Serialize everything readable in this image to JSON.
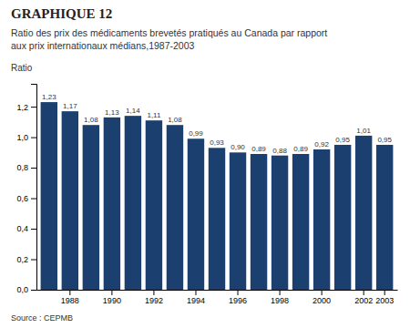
{
  "chart_data": {
    "type": "bar",
    "title": "GRAPHIQUE 12",
    "subtitle": [
      "Ratio des prix des médicaments brevetés pratiqués au Canada par rapport",
      "aux prix internationaux médians,1987-2003"
    ],
    "y_label": "Ratio",
    "source": "Source : CEPMB",
    "categories": [
      null,
      "1988",
      null,
      "1990",
      null,
      "1992",
      null,
      "1994",
      null,
      "1996",
      null,
      "1998",
      null,
      "2000",
      null,
      "2002",
      "2003"
    ],
    "values": [
      1.23,
      1.17,
      1.08,
      1.13,
      1.14,
      1.11,
      1.08,
      0.99,
      0.93,
      0.9,
      0.89,
      0.88,
      0.89,
      0.92,
      0.95,
      1.01,
      0.95
    ],
    "value_labels": [
      "1,23",
      "1,17",
      "1,08",
      "1,13",
      "1,14",
      "1,11",
      "1,08",
      "0,99",
      "0,93",
      "0,90",
      "0,89",
      "0,88",
      "0,89",
      "0,92",
      "0,95",
      "1,01",
      "0,95"
    ],
    "data_labels": true,
    "color": "#1b3f6e",
    "ylim": [
      0,
      1.35
    ],
    "yticks": [
      {
        "value": 0.0,
        "label": "0,0"
      },
      {
        "value": 0.2,
        "label": "0,2"
      },
      {
        "value": 0.4,
        "label": "0,4"
      },
      {
        "value": 0.6,
        "label": "0,6"
      },
      {
        "value": 0.8,
        "label": "0,8"
      },
      {
        "value": 1.0,
        "label": "1,0"
      },
      {
        "value": 1.2,
        "label": "1,2"
      }
    ],
    "grid": false
  }
}
